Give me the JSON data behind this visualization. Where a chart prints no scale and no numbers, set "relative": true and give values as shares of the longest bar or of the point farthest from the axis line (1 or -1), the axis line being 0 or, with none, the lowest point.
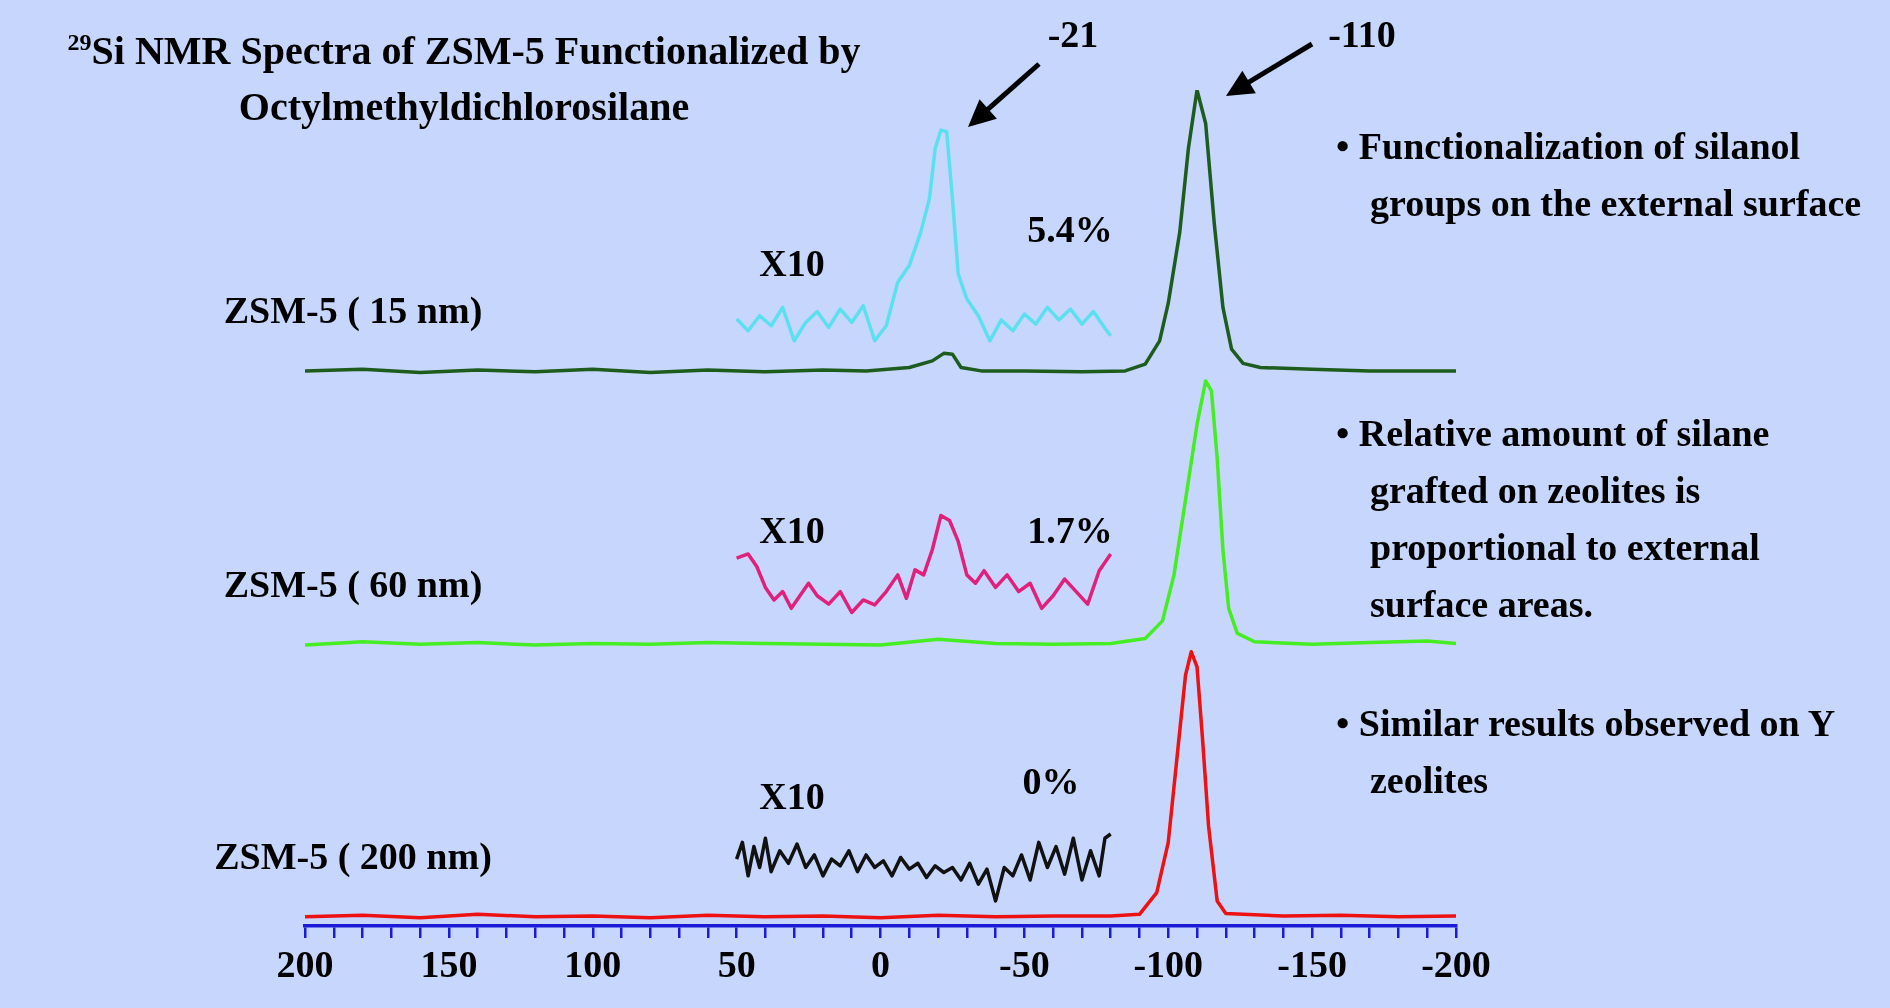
{
  "chart_data": {
    "type": "line",
    "title": "$^{29}$Si NMR Spectra of ZSM-5 Functionalized by Octylmethyldichlorosilane",
    "relative": true,
    "marker": "none",
    "xlim": [
      200,
      -200
    ],
    "xticks": [
      200,
      {
        "value": 190,
        "label": null
      },
      {
        "value": 180,
        "label": null
      },
      {
        "value": 170,
        "label": null
      },
      {
        "value": 160,
        "label": null
      },
      150,
      {
        "value": 140,
        "label": null
      },
      {
        "value": 130,
        "label": null
      },
      {
        "value": 120,
        "label": null
      },
      {
        "value": 110,
        "label": null
      },
      100,
      {
        "value": 90,
        "label": null
      },
      {
        "value": 80,
        "label": null
      },
      {
        "value": 70,
        "label": null
      },
      {
        "value": 60,
        "label": null
      },
      50,
      {
        "value": 40,
        "label": null
      },
      {
        "value": 30,
        "label": null
      },
      {
        "value": 20,
        "label": null
      },
      {
        "value": 10,
        "label": null
      },
      0,
      {
        "value": -10,
        "label": null
      },
      {
        "value": -20,
        "label": null
      },
      {
        "value": -30,
        "label": null
      },
      {
        "value": -40,
        "label": null
      },
      -50,
      {
        "value": -60,
        "label": null
      },
      {
        "value": -70,
        "label": null
      },
      {
        "value": -80,
        "label": null
      },
      {
        "value": -90,
        "label": null
      },
      -100,
      {
        "value": -110,
        "label": null
      },
      {
        "value": -120,
        "label": null
      },
      {
        "value": -130,
        "label": null
      },
      {
        "value": -140,
        "label": null
      },
      -150,
      {
        "value": -160,
        "label": null
      },
      {
        "value": -170,
        "label": null
      },
      {
        "value": -180,
        "label": null
      },
      {
        "value": -190,
        "label": null
      },
      -200
    ],
    "series": [
      {
        "name": "ZSM-5 ( 15 nm)",
        "color": "#1e5c1e",
        "x": [
          200,
          180,
          160,
          140,
          120,
          100,
          80,
          60,
          40,
          20,
          5,
          -10,
          -18,
          -22,
          -25,
          -28,
          -35,
          -50,
          -70,
          -85,
          -92,
          -97,
          -100,
          -104,
          -107,
          -110,
          -113,
          -116,
          -119,
          -122,
          -126,
          -132,
          -150,
          -170,
          -200
        ],
        "values": [
          0.664,
          0.666,
          0.662,
          0.665,
          0.663,
          0.666,
          0.662,
          0.665,
          0.663,
          0.665,
          0.664,
          0.668,
          0.676,
          0.685,
          0.684,
          0.668,
          0.664,
          0.664,
          0.663,
          0.664,
          0.672,
          0.7,
          0.745,
          0.83,
          0.93,
          1,
          0.96,
          0.84,
          0.74,
          0.69,
          0.673,
          0.668,
          0.666,
          0.664,
          0.664
        ]
      },
      {
        "color": "#5ce0f0",
        "x": [
          50,
          46,
          42,
          38,
          34,
          30,
          26,
          22,
          18,
          14,
          10,
          6,
          2,
          -2,
          -6,
          -10,
          -14,
          -17,
          -19,
          -21,
          -23,
          -25,
          -27,
          -30,
          -34,
          -38,
          -42,
          -46,
          -50,
          -54,
          -58,
          -62,
          -66,
          -70,
          -74,
          -78,
          -80
        ],
        "values": [
          0.726,
          0.712,
          0.73,
          0.718,
          0.74,
          0.7,
          0.722,
          0.735,
          0.716,
          0.738,
          0.722,
          0.742,
          0.7,
          0.718,
          0.77,
          0.79,
          0.83,
          0.87,
          0.93,
          0.952,
          0.95,
          0.87,
          0.78,
          0.75,
          0.73,
          0.7,
          0.725,
          0.712,
          0.732,
          0.72,
          0.74,
          0.725,
          0.738,
          0.72,
          0.735,
          0.715,
          0.706
        ]
      },
      {
        "name": "ZSM-5 ( 60 nm)",
        "color": "#44ee22",
        "x": [
          200,
          180,
          160,
          140,
          120,
          100,
          80,
          60,
          40,
          20,
          0,
          -20,
          -40,
          -60,
          -80,
          -92,
          -98,
          -102,
          -106,
          -110,
          -113,
          -115,
          -117,
          -119,
          -121,
          -124,
          -130,
          -150,
          -170,
          -190,
          -200
        ],
        "values": [
          0.336,
          0.34,
          0.337,
          0.339,
          0.336,
          0.338,
          0.337,
          0.339,
          0.338,
          0.337,
          0.336,
          0.343,
          0.338,
          0.337,
          0.338,
          0.344,
          0.365,
          0.42,
          0.51,
          0.6,
          0.652,
          0.64,
          0.56,
          0.45,
          0.38,
          0.35,
          0.34,
          0.337,
          0.339,
          0.341,
          0.338
        ]
      },
      {
        "color": "#e0207a",
        "x": [
          50,
          46,
          43,
          40,
          37,
          34,
          31,
          28,
          25,
          22,
          18,
          14,
          10,
          6,
          2,
          -2,
          -6,
          -9,
          -12,
          -15,
          -18,
          -21,
          -24,
          -27,
          -30,
          -33,
          -36,
          -40,
          -44,
          -48,
          -52,
          -56,
          -60,
          -64,
          -68,
          -72,
          -76,
          -80
        ],
        "values": [
          0.44,
          0.445,
          0.43,
          0.405,
          0.39,
          0.4,
          0.38,
          0.395,
          0.41,
          0.395,
          0.385,
          0.4,
          0.375,
          0.39,
          0.384,
          0.4,
          0.42,
          0.392,
          0.426,
          0.42,
          0.45,
          0.491,
          0.485,
          0.46,
          0.42,
          0.41,
          0.425,
          0.405,
          0.42,
          0.4,
          0.41,
          0.38,
          0.395,
          0.415,
          0.4,
          0.385,
          0.425,
          0.445
        ]
      },
      {
        "name": "ZSM-5 ( 200 nm)",
        "color": "#ee1111",
        "x": [
          200,
          180,
          160,
          140,
          120,
          100,
          80,
          60,
          40,
          20,
          0,
          -20,
          -40,
          -60,
          -80,
          -90,
          -96,
          -100,
          -103,
          -106,
          -108,
          -110,
          -112,
          -114,
          -117,
          -120,
          -140,
          -160,
          -180,
          -200
        ],
        "values": [
          0.011,
          0.013,
          0.01,
          0.014,
          0.011,
          0.012,
          0.01,
          0.013,
          0.011,
          0.012,
          0.01,
          0.013,
          0.011,
          0.012,
          0.012,
          0.014,
          0.04,
          0.1,
          0.2,
          0.3,
          0.328,
          0.31,
          0.22,
          0.12,
          0.03,
          0.015,
          0.012,
          0.013,
          0.011,
          0.012
        ]
      },
      {
        "color": "#111111",
        "x": [
          50,
          48,
          46,
          44,
          42,
          40,
          38,
          35,
          32,
          29,
          26,
          23,
          20,
          17,
          14,
          11,
          8,
          5,
          2,
          -1,
          -4,
          -7,
          -10,
          -13,
          -16,
          -19,
          -22,
          -25,
          -28,
          -31,
          -34,
          -37,
          -40,
          -43,
          -46,
          -49,
          -52,
          -55,
          -58,
          -61,
          -64,
          -67,
          -70,
          -73,
          -76,
          -78,
          -80
        ],
        "values": [
          0.08,
          0.1,
          0.06,
          0.095,
          0.07,
          0.105,
          0.065,
          0.09,
          0.075,
          0.098,
          0.07,
          0.085,
          0.06,
          0.08,
          0.072,
          0.09,
          0.065,
          0.085,
          0.07,
          0.078,
          0.06,
          0.082,
          0.068,
          0.075,
          0.058,
          0.072,
          0.064,
          0.07,
          0.055,
          0.075,
          0.05,
          0.068,
          0.03,
          0.07,
          0.06,
          0.085,
          0.055,
          0.1,
          0.07,
          0.095,
          0.062,
          0.105,
          0.055,
          0.09,
          0.06,
          0.105,
          0.11
        ]
      }
    ],
    "annotations": [
      "-21",
      "-110",
      "X10",
      "5.4%",
      "X10",
      "1.7%",
      "X10",
      "0%",
      "• Functionalization of silanol groups on the external surface",
      "• Relative amount of silane grafted on zeolites is proportional to external surface areas.",
      "• Similar results observed on Y zeolites"
    ]
  }
}
